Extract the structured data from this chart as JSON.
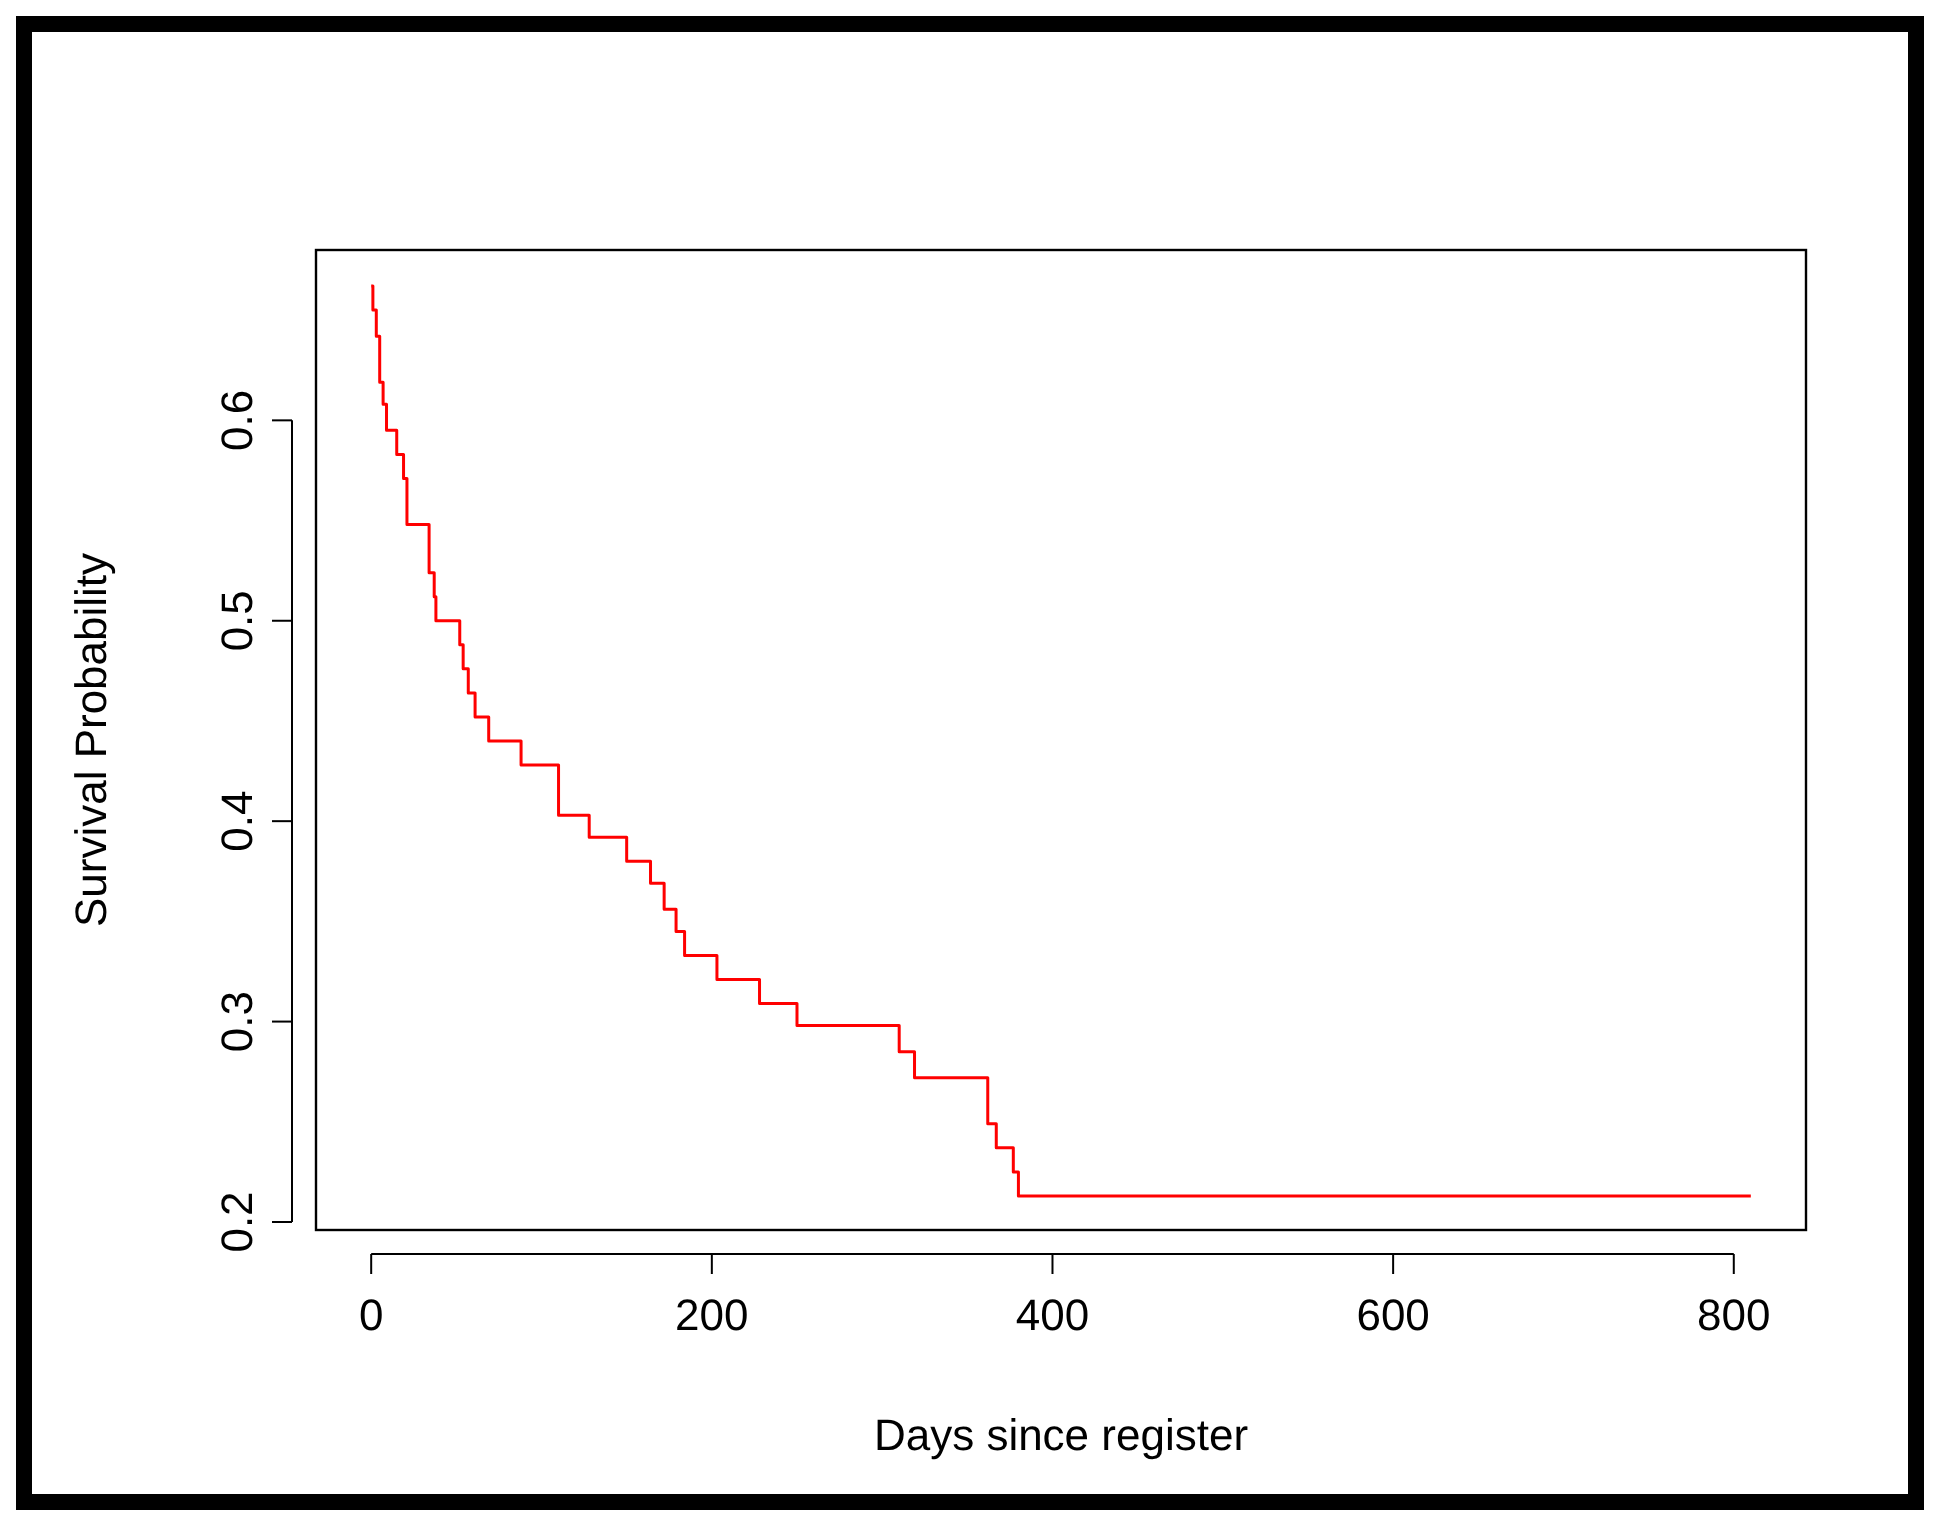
{
  "chart_data": {
    "type": "step",
    "xlabel": "Days since register",
    "ylabel": "Survival Probability",
    "x": [
      0,
      1,
      3,
      5,
      7,
      9,
      15,
      19,
      21,
      34,
      37,
      38,
      52,
      54,
      57,
      61,
      69,
      88,
      110,
      128,
      150,
      164,
      172,
      179,
      184,
      203,
      228,
      250,
      310,
      319,
      362,
      367,
      377,
      380,
      810
    ],
    "series": [
      {
        "color": "#ff0000",
        "values": [
          0.667,
          0.655,
          0.642,
          0.619,
          0.608,
          0.595,
          0.583,
          0.571,
          0.548,
          0.524,
          0.512,
          0.5,
          0.488,
          0.476,
          0.464,
          0.452,
          0.44,
          0.428,
          0.403,
          0.392,
          0.38,
          0.369,
          0.356,
          0.345,
          0.333,
          0.321,
          0.309,
          0.298,
          0.285,
          0.272,
          0.249,
          0.237,
          0.225,
          0.213,
          0.213
        ]
      }
    ],
    "xlim": [
      -32.4,
      842.4
    ],
    "ylim": [
      0.196,
      0.685
    ],
    "xticks": [
      0,
      200,
      400,
      600,
      800
    ],
    "yticks": [
      0.2,
      0.3,
      0.4,
      0.5,
      0.6
    ],
    "grid": false,
    "line_style": "solid"
  }
}
